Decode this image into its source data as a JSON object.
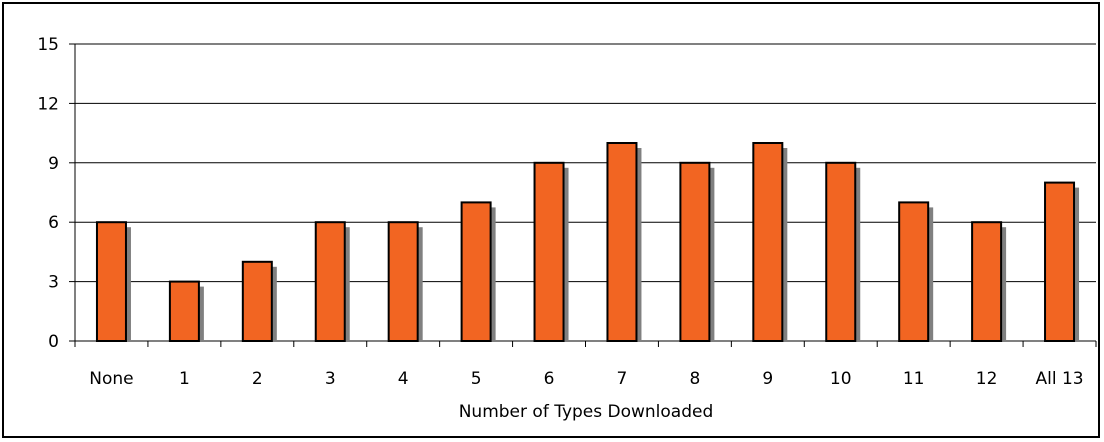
{
  "chart_data": {
    "type": "bar",
    "title": "",
    "xlabel": "Number of Types Downloaded",
    "ylabel": "",
    "categories": [
      "None",
      "1",
      "2",
      "3",
      "4",
      "5",
      "6",
      "7",
      "8",
      "9",
      "10",
      "11",
      "12",
      "All 13"
    ],
    "values": [
      6,
      3,
      4,
      6,
      6,
      7,
      9,
      10,
      9,
      10,
      9,
      7,
      6,
      8
    ],
    "ylim": [
      0,
      15
    ],
    "yticks": [
      0,
      3,
      6,
      9,
      12,
      15
    ],
    "grid": true,
    "legend": "none",
    "colors": {
      "bar": "#f26522",
      "shadow": "#808080",
      "outline": "#000000",
      "grid": "#000000"
    }
  }
}
